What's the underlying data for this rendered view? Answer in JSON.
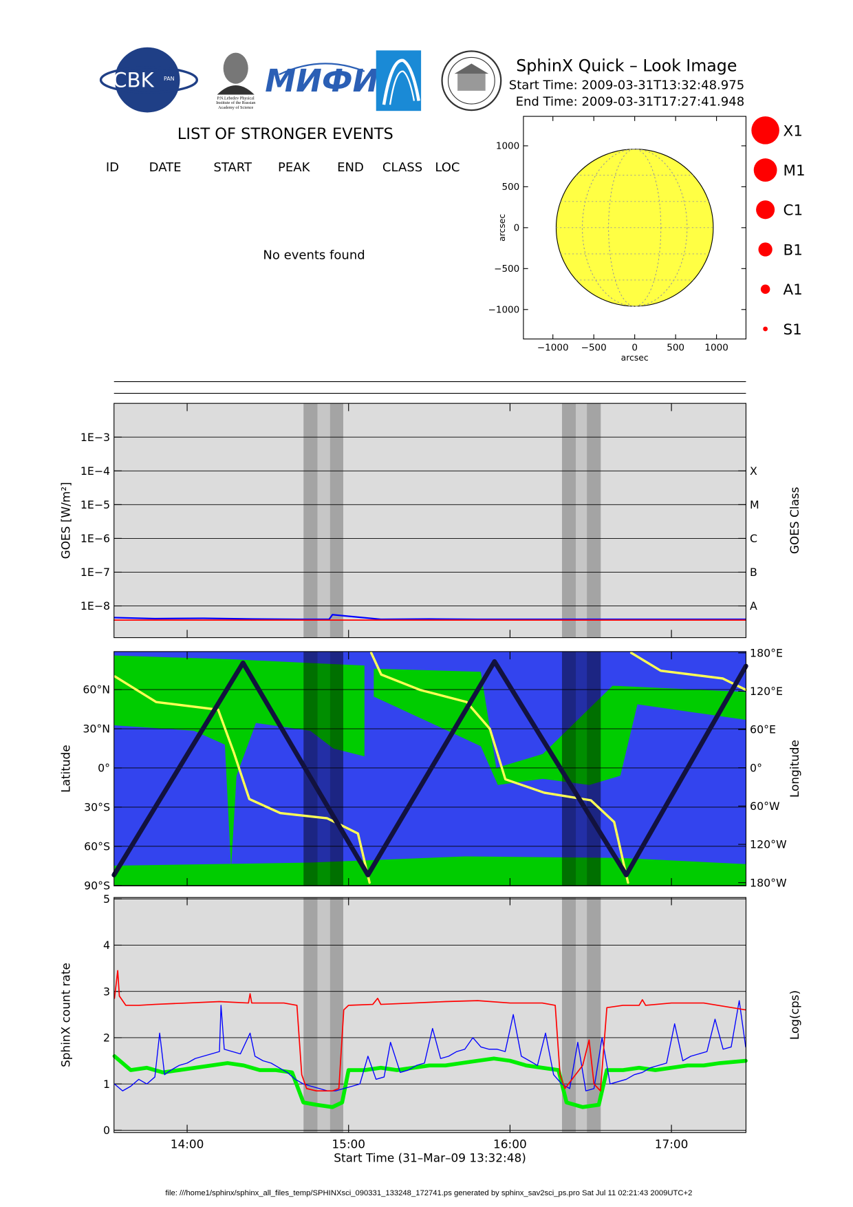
{
  "header": {
    "title": "SphinX Quick – Look Image",
    "start_time": "Start Time: 2009-03-31T13:32:48.975",
    "end_time": "End Time: 2009-03-31T17:27:41.948"
  },
  "logos": {
    "cbk": "CBK",
    "pan": "PAN",
    "lebedev": [
      "P.N.Lebedev Physical",
      "Institute of the Russian",
      "Academy of Science"
    ],
    "mifi": "МИФИ"
  },
  "events": {
    "title": "LIST OF STRONGER EVENTS",
    "columns": [
      "ID",
      "DATE",
      "START",
      "PEAK",
      "END",
      "CLASS",
      "LOC"
    ],
    "message": "No events found"
  },
  "time_axis": {
    "xlabel": "Start Time (31–Mar–09 13:32:48)",
    "xlim": [
      13.5469,
      17.4617
    ],
    "xticks": [
      {
        "value": 14,
        "label": "14:00"
      },
      {
        "value": 15,
        "label": "15:00"
      },
      {
        "value": 16,
        "label": "16:00"
      },
      {
        "value": 17,
        "label": "17:00"
      }
    ]
  },
  "time_bands": [
    {
      "start": 14.721,
      "end": 14.808,
      "color": "#a4a4a4"
    },
    {
      "start": 14.808,
      "end": 14.885,
      "color": "#c6c6c6"
    },
    {
      "start": 14.885,
      "end": 14.967,
      "color": "#a4a4a4"
    },
    {
      "start": 16.322,
      "end": 16.408,
      "color": "#a4a4a4"
    },
    {
      "start": 16.408,
      "end": 16.476,
      "color": "#c6c6c6"
    },
    {
      "start": 16.476,
      "end": 16.562,
      "color": "#a4a4a4"
    }
  ],
  "chart_data": [
    {
      "type": "disk",
      "xlabel": "arcsec",
      "ylabel": "arcsec",
      "xlim": [
        -1360,
        1360
      ],
      "ylim": [
        -1360,
        1360
      ],
      "radius": 960,
      "color": "#ffff44",
      "xticks": [
        {
          "value": -1000,
          "label": "−1000"
        },
        {
          "value": -500,
          "label": "−500"
        },
        0,
        500,
        1000
      ],
      "yticks": [
        {
          "value": -1000,
          "label": "−1000"
        },
        {
          "value": -500,
          "label": "−500"
        },
        0,
        500,
        1000
      ],
      "legend": {
        "labels": [
          "X1",
          "M1",
          "C1",
          "B1",
          "A1",
          "S1"
        ],
        "color": "#ff0000"
      }
    },
    {
      "type": "line",
      "log_scale": true,
      "ylabel": "GOES [W/m²]",
      "y2label": "GOES Class",
      "ylim": [
        1.15e-09,
        0.01
      ],
      "background": "#dcdcdc",
      "yticks": [
        {
          "value": 0.001,
          "label": "1E−3"
        },
        {
          "value": 0.0001,
          "label": "1E−4"
        },
        {
          "value": 1e-05,
          "label": "1E−5"
        },
        {
          "value": 1e-06,
          "label": "1E−6"
        },
        {
          "value": 1e-07,
          "label": "1E−7"
        },
        {
          "value": 1e-08,
          "label": "1E−8"
        }
      ],
      "y2ticks": [
        {
          "value": 0.0001,
          "label": "X"
        },
        {
          "value": 1e-05,
          "label": "M"
        },
        {
          "value": 1e-06,
          "label": "C"
        },
        {
          "value": 1e-07,
          "label": "B"
        },
        {
          "value": 1e-08,
          "label": "A"
        }
      ],
      "series": [
        {
          "color": "#0000ff",
          "x": [
            13.55,
            13.8,
            14.1,
            14.4,
            14.7,
            14.88,
            14.9,
            15.2,
            15.5,
            15.8,
            16.1,
            16.4,
            16.7,
            17.0,
            17.3,
            17.46
          ],
          "values": [
            4.5e-09,
            4.2e-09,
            4.3e-09,
            4.1e-09,
            4e-09,
            4e-09,
            5.5e-09,
            4e-09,
            4.1e-09,
            4e-09,
            4e-09,
            4e-09,
            4e-09,
            4e-09,
            4e-09,
            4e-09
          ]
        },
        {
          "color": "#ff0000",
          "x": [
            13.547,
            17.461
          ],
          "values": [
            3.8e-09,
            3.8e-09
          ]
        }
      ]
    },
    {
      "type": "line",
      "ylabel": "Latitude",
      "y2label": "Longitude",
      "ylim": [
        -90.3,
        89.1
      ],
      "y2lim": [
        -185,
        182
      ],
      "background": "#3344ee",
      "yticks": [
        {
          "value": 60,
          "label": "60°N"
        },
        {
          "value": 30,
          "label": "30°N"
        },
        {
          "value": 0,
          "label": "0°"
        },
        {
          "value": -30,
          "label": "30°S"
        },
        {
          "value": -60,
          "label": "60°S"
        },
        {
          "value": -90,
          "label": "90°S"
        }
      ],
      "y2ticks": [
        {
          "value": 180,
          "label": "180°E"
        },
        {
          "value": 120,
          "label": "120°E"
        },
        {
          "value": 60,
          "label": "60°E"
        },
        {
          "value": 0,
          "label": "0°"
        },
        {
          "value": -60,
          "label": "60°W"
        },
        {
          "value": -120,
          "label": "120°W"
        },
        {
          "value": -180,
          "label": "180°W"
        }
      ],
      "series": [
        {
          "color": "#ffff55",
          "axis": "y2",
          "x": [
            13.553,
            13.808,
            14.192,
            14.289,
            14.385,
            14.577,
            14.866,
            15.058,
            15.13,
            null,
            15.14,
            15.202,
            15.443,
            15.731,
            15.875,
            15.971,
            16.212,
            16.501,
            16.645,
            16.731,
            null,
            16.751,
            16.934,
            17.317,
            17.461
          ],
          "values": [
            143,
            103,
            91,
            24,
            -49,
            -71,
            -79,
            -103,
            -180,
            null,
            180,
            146,
            122,
            103,
            61,
            -18,
            -39,
            -51,
            -85,
            -180,
            null,
            180,
            152,
            140,
            122
          ]
        },
        {
          "color": "#12123e",
          "x": [
            13.547,
            14.346,
            15.12,
            15.904,
            16.72,
            17.461
          ],
          "values": [
            -82,
            80.5,
            -82,
            81.5,
            -82,
            78
          ]
        }
      ]
    },
    {
      "type": "line",
      "ylabel": "SphinX count rate",
      "y2label": "Log(cps)",
      "ylim": [
        -0.05,
        5.03
      ],
      "background": "#dcdcdc",
      "yticks": [
        0,
        1,
        2,
        3,
        4,
        5
      ],
      "series": [
        {
          "color": "#00ee00",
          "x": [
            13.55,
            13.65,
            13.75,
            13.85,
            13.95,
            14.05,
            14.15,
            14.25,
            14.35,
            14.45,
            14.55,
            14.65,
            14.72,
            14.8,
            14.9,
            14.96,
            15.0,
            15.1,
            15.2,
            15.3,
            15.4,
            15.5,
            15.6,
            15.7,
            15.8,
            15.9,
            16.0,
            16.1,
            16.2,
            16.3,
            16.35,
            16.45,
            16.55,
            16.6,
            16.7,
            16.8,
            16.9,
            17.0,
            17.1,
            17.2,
            17.3,
            17.46
          ],
          "values": [
            1.6,
            1.3,
            1.35,
            1.25,
            1.3,
            1.35,
            1.4,
            1.45,
            1.4,
            1.3,
            1.3,
            1.25,
            0.6,
            0.55,
            0.5,
            0.6,
            1.3,
            1.3,
            1.35,
            1.3,
            1.35,
            1.4,
            1.4,
            1.45,
            1.5,
            1.55,
            1.5,
            1.4,
            1.35,
            1.3,
            0.6,
            0.5,
            0.55,
            1.3,
            1.3,
            1.35,
            1.3,
            1.35,
            1.4,
            1.4,
            1.45,
            1.5
          ]
        },
        {
          "color": "#0000ff",
          "x": [
            13.55,
            13.6,
            13.65,
            13.7,
            13.75,
            13.8,
            13.83,
            13.86,
            13.9,
            13.95,
            14.0,
            14.05,
            14.1,
            14.15,
            14.2,
            14.21,
            14.23,
            14.28,
            14.33,
            14.39,
            14.42,
            14.47,
            14.52,
            14.57,
            14.62,
            14.67,
            14.72,
            14.77,
            14.82,
            14.87,
            14.92,
            14.97,
            15.02,
            15.07,
            15.12,
            15.17,
            15.22,
            15.26,
            15.32,
            15.37,
            15.42,
            15.47,
            15.52,
            15.57,
            15.62,
            15.67,
            15.72,
            15.77,
            15.82,
            15.87,
            15.92,
            15.97,
            16.02,
            16.07,
            16.12,
            16.17,
            16.22,
            16.27,
            16.32,
            16.37,
            16.42,
            16.47,
            16.52,
            16.57,
            16.62,
            16.67,
            16.72,
            16.77,
            16.82,
            16.87,
            16.92,
            16.97,
            17.02,
            17.07,
            17.12,
            17.17,
            17.22,
            17.27,
            17.32,
            17.37,
            17.42,
            17.46
          ],
          "values": [
            1.0,
            0.85,
            0.95,
            1.1,
            1.0,
            1.15,
            2.1,
            1.2,
            1.3,
            1.4,
            1.45,
            1.55,
            1.6,
            1.65,
            1.7,
            2.7,
            1.75,
            1.7,
            1.65,
            2.1,
            1.6,
            1.5,
            1.45,
            1.35,
            1.25,
            1.1,
            1.0,
            0.95,
            0.9,
            0.85,
            0.85,
            0.9,
            0.95,
            1.0,
            1.6,
            1.1,
            1.15,
            1.9,
            1.25,
            1.3,
            1.4,
            1.45,
            2.2,
            1.55,
            1.6,
            1.7,
            1.75,
            2.0,
            1.8,
            1.75,
            1.75,
            1.7,
            2.5,
            1.6,
            1.5,
            1.4,
            2.1,
            1.2,
            1.0,
            0.9,
            1.9,
            0.85,
            0.9,
            2.0,
            1.0,
            1.05,
            1.1,
            1.2,
            1.25,
            1.35,
            1.4,
            1.45,
            2.3,
            1.5,
            1.6,
            1.65,
            1.7,
            2.4,
            1.75,
            1.8,
            2.8,
            1.8
          ]
        },
        {
          "color": "#ff0000",
          "x": [
            13.55,
            13.57,
            13.58,
            13.62,
            13.7,
            13.8,
            14.0,
            14.2,
            14.38,
            14.39,
            14.4,
            14.6,
            14.68,
            14.71,
            14.74,
            14.8,
            14.9,
            14.94,
            14.97,
            15.0,
            15.15,
            15.18,
            15.2,
            15.4,
            15.6,
            15.8,
            16.0,
            16.2,
            16.28,
            16.31,
            16.34,
            16.45,
            16.49,
            16.52,
            16.56,
            16.6,
            16.7,
            16.8,
            16.82,
            16.84,
            17.0,
            17.2,
            17.46
          ],
          "values": [
            2.85,
            3.45,
            2.9,
            2.7,
            2.7,
            2.72,
            2.75,
            2.78,
            2.75,
            2.95,
            2.75,
            2.75,
            2.7,
            1.2,
            0.9,
            0.85,
            0.85,
            0.9,
            2.6,
            2.7,
            2.72,
            2.85,
            2.72,
            2.75,
            2.78,
            2.8,
            2.75,
            2.75,
            2.7,
            1.2,
            0.9,
            1.4,
            1.95,
            1.0,
            0.85,
            2.65,
            2.7,
            2.7,
            2.82,
            2.7,
            2.75,
            2.75,
            2.6
          ]
        }
      ]
    }
  ],
  "footer": "file: ///home1/sphinx/sphinx_all_files_temp/SPHINXsci_090331_133248_172741.ps generated by sphinx_sav2sci_ps.pro Sat Jul 11 02:21:43 2009UTC+2"
}
